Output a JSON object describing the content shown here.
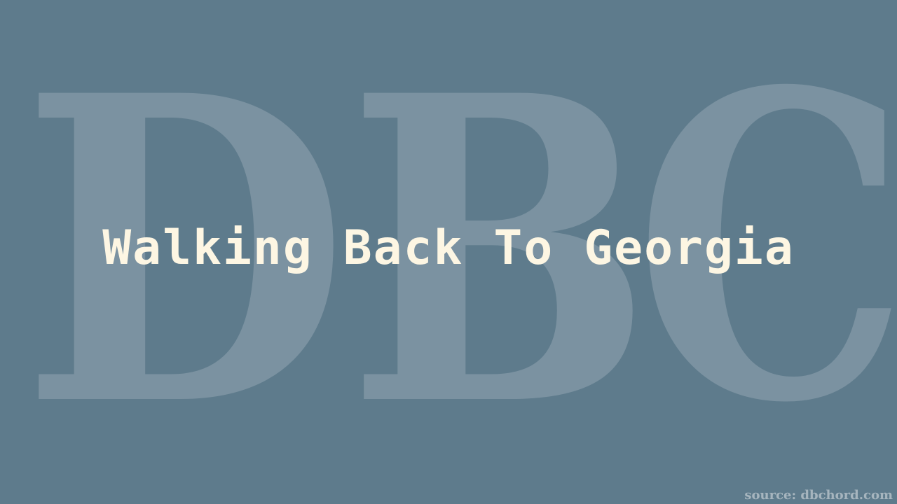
{
  "background_color": "#5e7b8c",
  "watermark": {
    "letters": [
      "D",
      "B",
      "C"
    ]
  },
  "title": "Walking Back To Georgia",
  "title_color": "#fdf6e3",
  "source": "source: dbchord.com"
}
